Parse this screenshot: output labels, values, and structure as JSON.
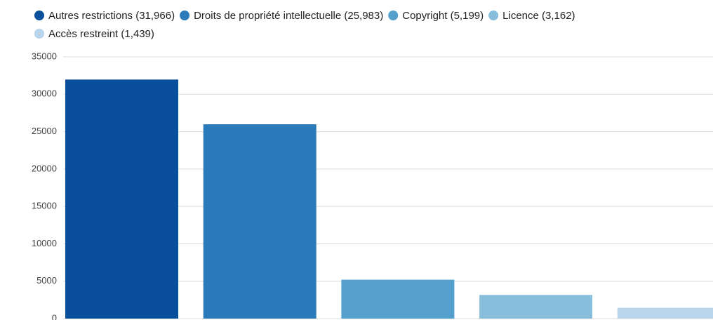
{
  "chart_data": {
    "type": "bar",
    "series": [
      {
        "name": "Autres restrictions (31,966)",
        "color": "#0a4f9b",
        "values": [
          31966
        ]
      },
      {
        "name": "Droits de propriété intellectuelle (25,983)",
        "color": "#2b7bba",
        "values": [
          25983
        ]
      },
      {
        "name": "Copyright (5,199)",
        "color": "#559fcc",
        "values": [
          5199
        ]
      },
      {
        "name": "Licence (3,162)",
        "color": "#89bddc",
        "values": [
          3162
        ]
      },
      {
        "name": "Accès restreint (1,439)",
        "color": "#b8d5eb",
        "values": [
          1439
        ]
      }
    ],
    "ylim": [
      0,
      35000
    ],
    "yticks": [
      0,
      5000,
      10000,
      15000,
      20000,
      25000,
      30000,
      35000
    ],
    "grid": true,
    "legend": "top"
  }
}
